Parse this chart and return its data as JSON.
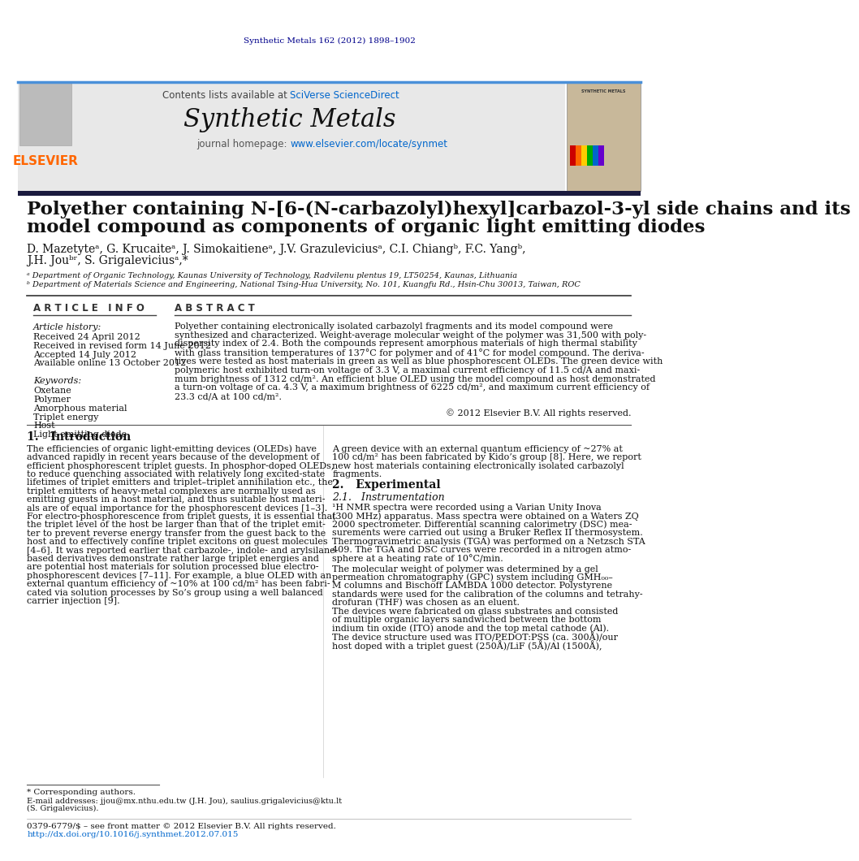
{
  "journal_ref": "Synthetic Metals 162 (2012) 1898–1902",
  "journal_ref_color": "#00008B",
  "header_bg": "#E8E8E8",
  "contents_text": "Contents lists available at ",
  "sciverse_text": "SciVerse ScienceDirect",
  "sciverse_color": "#0066CC",
  "journal_title": "Synthetic Metals",
  "journal_homepage_prefix": "journal homepage: ",
  "journal_homepage_url": "www.elsevier.com/locate/synmet",
  "elsevier_color": "#FF6600",
  "paper_title_line1": "Polyether containing N-[6-(N-carbazolyl)hexyl]carbazol-3-yl side chains and its",
  "paper_title_line2": "model compound as components of organic light emitting diodes",
  "authors": "D. Mazetyteᵃ, G. Krucaiteᵃ, J. Simokaitieneᵃ, J.V. Grazuleviciusᵃ, C.I. Chiangᵇ, F.C. Yangᵇ,",
  "authors2": "J.H. Jouᵇʳ, S. Grigaleviciusᵃ,*",
  "affil_a": "ᵃ Department of Organic Technology, Kaunas University of Technology, Radvilenu plentus 19, LT50254, Kaunas, Lithuania",
  "affil_b": "ᵇ Department of Materials Science and Engineering, National Tsing-Hua University, No. 101, Kuangfu Rd., Hsin-Chu 30013, Taiwan, ROC",
  "article_info_title": "A R T I C L E   I N F O",
  "abstract_title": "A B S T R A C T",
  "article_history": "Article history:",
  "received": "Received 24 April 2012",
  "received_revised": "Received in revised form 14 June 2012",
  "accepted": "Accepted 14 July 2012",
  "available": "Available online 13 October 2012",
  "keywords_title": "Keywords:",
  "kw1": "Oxetane",
  "kw2": "Polymer",
  "kw3": "Amorphous material",
  "kw4": "Triplet energy",
  "kw5": "Host",
  "kw6": "Light emitting diode",
  "copyright": "© 2012 Elsevier B.V. All rights reserved.",
  "intro_title": "1.   Introduction",
  "section2_title": "2.   Experimental",
  "section21_title": "2.1.   Instrumentation",
  "footnote_star": "* Corresponding authors.",
  "footnote_email": "E-mail addresses: jjou@mx.nthu.edu.tw (J.H. Jou), saulius.grigalevicius@ktu.lt",
  "footnote_email2": "(S. Grigalevicius).",
  "issn_text": "0379-6779/$ – see front matter © 2012 Elsevier B.V. All rights reserved.",
  "doi_text": "http://dx.doi.org/10.1016/j.synthmet.2012.07.015",
  "bg_color": "#ffffff",
  "text_color": "#000000",
  "link_color": "#0066CC",
  "dark_navy": "#1a1a3e",
  "header_blue_line": "#4a90d9",
  "abs_lines": [
    "Polyether containing electronically isolated carbazolyl fragments and its model compound were",
    "synthesized and characterized. Weight-average molecular weight of the polymer was 31,500 with poly-",
    "dispersity index of 2.4. Both the compounds represent amorphous materials of high thermal stability",
    "with glass transition temperatures of 137°C for polymer and of 41°C for model compound. The deriva-",
    "tives were tested as host materials in green as well as blue phosphorescent OLEDs. The green device with",
    "polymeric host exhibited turn-on voltage of 3.3 V, a maximal current efficiency of 11.5 cd/A and maxi-",
    "mum brightness of 1312 cd/m². An efficient blue OLED using the model compound as host demonstrated",
    "a turn-on voltage of ca. 4.3 V, a maximum brightness of 6225 cd/m², and maximum current efficiency of",
    "23.3 cd/A at 100 cd/m²."
  ],
  "intro_lines_left": [
    "The efficiencies of organic light-emitting devices (OLEDs) have",
    "advanced rapidly in recent years because of the development of",
    "efficient phosphorescent triplet guests. In phosphor-doped OLEDs,",
    "to reduce quenching associated with relatively long excited-state",
    "lifetimes of triplet emitters and triplet–triplet annihilation etc., the",
    "triplet emitters of heavy-metal complexes are normally used as",
    "emitting guests in a host material, and thus suitable host materi-",
    "als are of equal importance for the phosphorescent devices [1–3].",
    "For electro-phosphorescence from triplet guests, it is essential that",
    "the triplet level of the host be larger than that of the triplet emit-",
    "ter to prevent reverse energy transfer from the guest back to the",
    "host and to effectively confine triplet excitons on guest molecules",
    "[4–6]. It was reported earlier that carbazole-, indole- and arylsilane-",
    "based derivatives demonstrate rather large triplet energies and",
    "are potential host materials for solution processed blue electro-",
    "phosphorescent devices [7–11]. For example, a blue OLED with an",
    "external quantum efficiency of ~10% at 100 cd/m² has been fabri-",
    "cated via solution processes by So’s group using a well balanced",
    "carrier injection [9]."
  ],
  "right_col_lines": [
    "A green device with an external quantum efficiency of ~27% at",
    "100 cd/m² has been fabricated by Kido’s group [8]. Here, we report",
    "new host materials containing electronically isolated carbazolyl",
    "fragments."
  ],
  "instr_lines": [
    "¹H NMR spectra were recorded using a Varian Unity Inova",
    "(300 MHz) apparatus. Mass spectra were obtained on a Waters ZQ",
    "2000 spectrometer. Differential scanning calorimetry (DSC) mea-",
    "surements were carried out using a Bruker Reflex II thermosystem.",
    "Thermogravimetric analysis (TGA) was performed on a Netzsch STA",
    "409. The TGA and DSC curves were recorded in a nitrogen atmo-",
    "sphere at a heating rate of 10°C/min."
  ],
  "mol_lines": [
    "The molecular weight of polymer was determined by a gel",
    "permeation chromatography (GPC) system including GMH₀₀–",
    "M columns and Bischoff LAMBDA 1000 detector. Polystyrene",
    "standards were used for the calibration of the columns and tetrahy-",
    "drofuran (THF) was chosen as an eluent."
  ],
  "dev_lines": [
    "The devices were fabricated on glass substrates and consisted",
    "of multiple organic layers sandwiched between the bottom",
    "indium tin oxide (ITO) anode and the top metal cathode (Al).",
    "The device structure used was ITO/PEDOT:PSS (ca. 300Å)/our",
    "host doped with a triplet guest (250Å)/LiF (5Å)/Al (1500Å),"
  ],
  "stripe_colors": [
    "#cc0000",
    "#ff6600",
    "#ffcc00",
    "#00aa00",
    "#0066cc",
    "#6600cc"
  ]
}
